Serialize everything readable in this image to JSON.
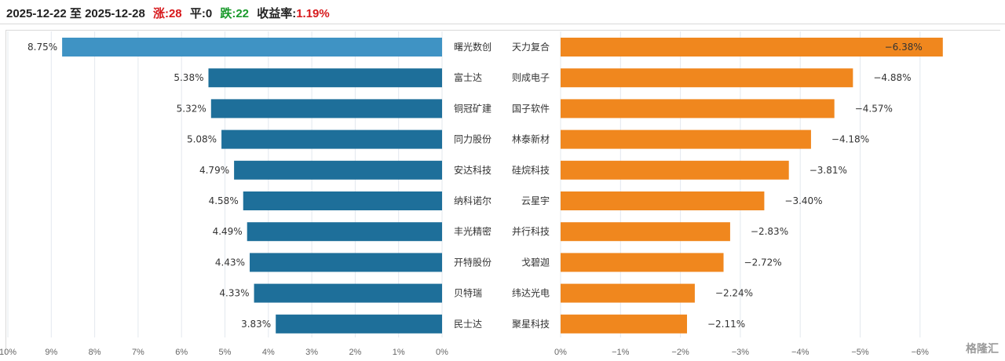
{
  "header": {
    "date_range": "2025-12-22 至 2025-12-28",
    "up_label": "涨:28",
    "flat_label": "平:0",
    "down_label": "跌:22",
    "return_prefix": "收益率:",
    "return_value": "1.19%"
  },
  "watermark": "格隆汇",
  "colors": {
    "left_bar": "#1e6f9a",
    "left_bar_top": "#3f93c4",
    "right_bar": "#f0871e",
    "grid": "#e3e8ee",
    "text": "#333333"
  },
  "chart_data": [
    {
      "type": "bar",
      "orientation": "horizontal",
      "title": "",
      "categories": [
        "曙光数创",
        "富士达",
        "铜冠矿建",
        "同力股份",
        "安达科技",
        "纳科诺尔",
        "丰光精密",
        "开特股份",
        "贝特瑞",
        "民士达"
      ],
      "values": [
        8.75,
        5.38,
        5.32,
        5.08,
        4.79,
        4.58,
        4.49,
        4.43,
        4.33,
        3.83
      ],
      "value_labels": [
        "8.75%",
        "5.38%",
        "5.32%",
        "5.08%",
        "4.79%",
        "4.58%",
        "4.49%",
        "4.43%",
        "4.33%",
        "3.83%"
      ],
      "xlim": [
        0,
        10
      ],
      "x_reversed": true,
      "ticks": [
        "10%",
        "9%",
        "8%",
        "7%",
        "6%",
        "5%",
        "4%",
        "3%",
        "2%",
        "1%",
        "0%"
      ],
      "grid": true
    },
    {
      "type": "bar",
      "orientation": "horizontal",
      "title": "",
      "categories": [
        "天力复合",
        "则成电子",
        "国子软件",
        "林泰新材",
        "硅烷科技",
        "云星宇",
        "并行科技",
        "戈碧迦",
        "纬达光电",
        "聚星科技"
      ],
      "values": [
        -6.38,
        -4.88,
        -4.57,
        -4.18,
        -3.81,
        -3.4,
        -2.83,
        -2.72,
        -2.24,
        -2.11
      ],
      "value_labels": [
        "−6.38%",
        "−4.88%",
        "−4.57%",
        "−4.18%",
        "−3.81%",
        "−3.40%",
        "−2.83%",
        "−2.72%",
        "−2.24%",
        "−2.11%"
      ],
      "xlim": [
        0,
        -6.5
      ],
      "ticks": [
        "0%",
        "−1%",
        "−2%",
        "−3%",
        "−4%",
        "−5%",
        "−6%"
      ],
      "grid": true
    }
  ]
}
